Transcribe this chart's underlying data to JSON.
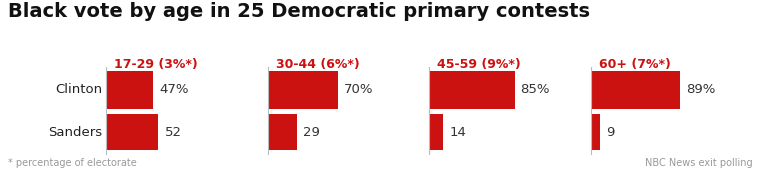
{
  "title": "Black vote by age in 25 Democratic primary contests",
  "title_fontsize": 14,
  "background_color": "#ffffff",
  "bar_color": "#cc1111",
  "groups": [
    {
      "age_label": "17-29 (3%*)",
      "clinton_val": 47,
      "sanders_val": 52,
      "clinton_label": "47%",
      "sanders_label": "52"
    },
    {
      "age_label": "30-44 (6%*)",
      "clinton_val": 70,
      "sanders_val": 29,
      "clinton_label": "70%",
      "sanders_label": "29"
    },
    {
      "age_label": "45-59 (9%*)",
      "clinton_val": 85,
      "sanders_val": 14,
      "clinton_label": "85%",
      "sanders_label": "14"
    },
    {
      "age_label": "60+ (7%*)",
      "clinton_val": 89,
      "sanders_val": 9,
      "clinton_label": "89%",
      "sanders_label": "9"
    }
  ],
  "row_labels": [
    "Clinton",
    "Sanders"
  ],
  "footnote_left": "* percentage of electorate",
  "footnote_right": "NBC News exit polling",
  "age_label_color": "#cc1111",
  "age_label_fontsize": 9,
  "bar_label_fontsize": 9.5,
  "row_label_fontsize": 9.5,
  "footnote_fontsize": 7,
  "title_color": "#111111",
  "row_label_color": "#222222",
  "bar_label_color": "#333333",
  "sep_line_color": "#bbbbbb",
  "max_val": 100
}
